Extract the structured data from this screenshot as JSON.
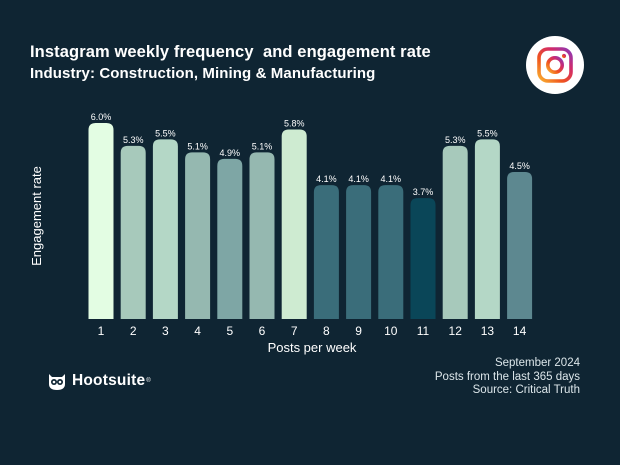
{
  "header": {
    "title": "Instagram weekly frequency  and engagement rate",
    "subtitle": "Industry: Construction, Mining & Manufacturing"
  },
  "footer": {
    "date": "September 2024",
    "scope": "Posts from the last 365 days",
    "source": "Source: Critical Truth"
  },
  "brand": {
    "name": "Hootsuite",
    "reg": "®"
  },
  "chart_data": {
    "type": "bar",
    "title": "Instagram weekly frequency  and engagement rate",
    "subtitle": "Industry: Construction, Mining & Manufacturing",
    "xlabel": "Posts per week",
    "ylabel": "Engagement rate",
    "categories": [
      "1",
      "2",
      "3",
      "4",
      "5",
      "6",
      "7",
      "8",
      "9",
      "10",
      "11",
      "12",
      "13",
      "14"
    ],
    "values": [
      6.0,
      5.3,
      5.5,
      5.1,
      4.9,
      5.1,
      5.8,
      4.1,
      4.1,
      4.1,
      3.7,
      5.3,
      5.5,
      4.5
    ],
    "labels": [
      "6.0%",
      "5.3%",
      "5.5%",
      "5.1%",
      "4.9%",
      "5.1%",
      "5.8%",
      "4.1%",
      "4.1%",
      "4.1%",
      "3.7%",
      "5.3%",
      "5.5%",
      "4.5%"
    ],
    "ylim": [
      0,
      6.0
    ],
    "grid": false,
    "colors": [
      "#e3fde3",
      "#a7c9bb",
      "#b4d7c6",
      "#95b8b0",
      "#7ea6a5",
      "#95b8b0",
      "#ceebd1",
      "#3a6d7a",
      "#3a6d7a",
      "#3a6d7a",
      "#0a4658",
      "#a7c9bb",
      "#b4d7c6",
      "#5d8890"
    ]
  },
  "colors": {
    "background": "#0f2533",
    "text": "#ffffff"
  }
}
